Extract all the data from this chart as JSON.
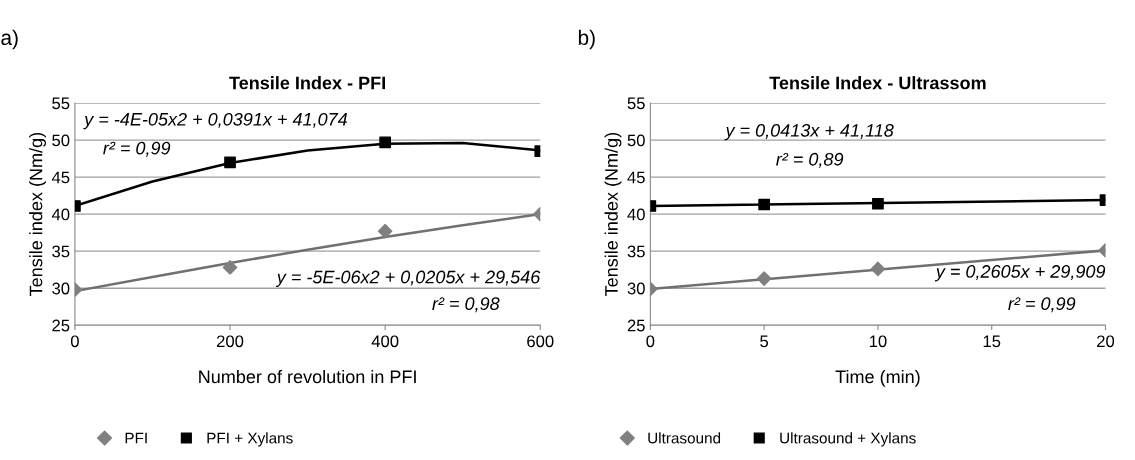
{
  "chart_data": [
    {
      "type": "scatter",
      "title": "Tensile Index - PFI",
      "xlabel": "Number of revolution in PFI",
      "ylabel": "Tensile index (Nm/g)",
      "x": [
        0,
        200,
        400,
        600
      ],
      "xlim": [
        0,
        600
      ],
      "xticks": [
        0,
        200,
        400,
        600
      ],
      "ylim": [
        25,
        55
      ],
      "yticks": [
        25,
        30,
        35,
        40,
        45,
        50,
        55
      ],
      "grid": "y",
      "legend": "bottom",
      "series": [
        {
          "name": "PFI",
          "color": "#808080",
          "marker": "diamond",
          "values": [
            29.8,
            32.8,
            37.7,
            40.0
          ]
        },
        {
          "name": "PFI + Xylans",
          "color": "#000000",
          "marker": "square",
          "values": [
            41.1,
            47.0,
            49.7,
            48.5
          ]
        },
        {
          "type": "line",
          "color": "#707070",
          "x": [
            0,
            100,
            200,
            300,
            400,
            500,
            600
          ],
          "values": [
            29.6,
            31.5,
            33.4,
            35.2,
            36.9,
            38.5,
            40.0
          ]
        },
        {
          "type": "line",
          "color": "#000000",
          "x": [
            0,
            100,
            200,
            300,
            400,
            500,
            600
          ],
          "values": [
            41.1,
            44.4,
            46.9,
            48.6,
            49.5,
            49.6,
            48.6
          ]
        }
      ],
      "annotations": [
        "a)",
        "y = -4E-05x2 + 0,0391x + 41,074",
        "r² = 0,99",
        "y = -5E-06x2 + 0,0205x + 29,546",
        "r² = 0,98"
      ]
    },
    {
      "type": "scatter",
      "title": "Tensile Index - Ultrassom",
      "xlabel": "Time (min)",
      "ylabel": "Tensile index (Nm/g)",
      "x": [
        0,
        5,
        10,
        20
      ],
      "xlim": [
        0,
        20
      ],
      "xticks": [
        0,
        5,
        10,
        15,
        20
      ],
      "ylim": [
        25,
        55
      ],
      "yticks": [
        25,
        30,
        35,
        40,
        45,
        50,
        55
      ],
      "grid": "y",
      "legend": "bottom",
      "series": [
        {
          "name": "Ultrasound",
          "color": "#808080",
          "marker": "diamond",
          "values": [
            29.9,
            31.3,
            32.6,
            35.1
          ]
        },
        {
          "name": "Ultrasound + Xylans",
          "color": "#000000",
          "marker": "square",
          "values": [
            41.1,
            41.3,
            41.4,
            41.9
          ]
        },
        {
          "type": "line",
          "color": "#707070",
          "x": [
            0,
            20
          ],
          "values": [
            29.9,
            35.1
          ]
        },
        {
          "type": "line",
          "color": "#000000",
          "x": [
            0,
            20
          ],
          "values": [
            41.1,
            41.9
          ]
        }
      ],
      "annotations": [
        "b)",
        "y = 0,0413x + 41,118",
        "r² = 0,89",
        "y = 0,2605x + 29,909",
        "r² = 0,99"
      ]
    }
  ]
}
